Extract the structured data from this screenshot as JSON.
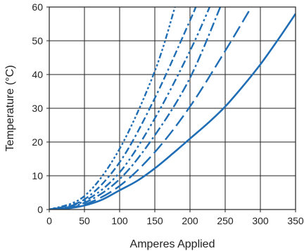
{
  "chart_data": {
    "type": "line",
    "title": "",
    "xlabel": "Amperes Applied",
    "ylabel": "Temperature (°C)",
    "xlim": [
      0,
      350
    ],
    "ylim": [
      0,
      60
    ],
    "x_ticks": [
      0,
      50,
      100,
      150,
      200,
      250,
      300,
      350
    ],
    "y_ticks": [
      0,
      10,
      20,
      30,
      40,
      50,
      60
    ],
    "grid": true,
    "legend": "none",
    "color": "#1f6db5",
    "series": [
      {
        "style": "solid",
        "x": [
          0,
          25,
          50,
          75,
          100,
          125,
          150,
          175,
          200,
          225,
          250,
          275,
          300,
          325,
          350
        ],
        "y": [
          0,
          0.3,
          1.2,
          2.9,
          5.7,
          8.5,
          12.2,
          16.5,
          21.0,
          25.5,
          30.5,
          36.5,
          43.0,
          50.3,
          58.0
        ]
      },
      {
        "style": "long-dash",
        "x": [
          0,
          50,
          100,
          150,
          200,
          250,
          290
        ],
        "y": [
          0,
          1.5,
          7.0,
          17.0,
          30.5,
          47.0,
          61.0
        ]
      },
      {
        "style": "dash-dot",
        "x": [
          0,
          50,
          100,
          150,
          200,
          245
        ],
        "y": [
          0,
          2.0,
          9.0,
          22.0,
          39.0,
          61.0
        ]
      },
      {
        "style": "dash-dot-dot",
        "x": [
          0,
          50,
          100,
          150,
          200,
          230
        ],
        "y": [
          0,
          2.5,
          11.0,
          27.0,
          47.0,
          61.0
        ]
      },
      {
        "style": "dash-dash-dot",
        "x": [
          0,
          50,
          100,
          150,
          200,
          210
        ],
        "y": [
          0,
          3.0,
          14.0,
          33.0,
          56.0,
          61.0
        ]
      },
      {
        "style": "dot-dot-dash",
        "x": [
          0,
          50,
          100,
          150,
          180
        ],
        "y": [
          0,
          4.0,
          18.0,
          41.0,
          61.0
        ]
      }
    ]
  }
}
